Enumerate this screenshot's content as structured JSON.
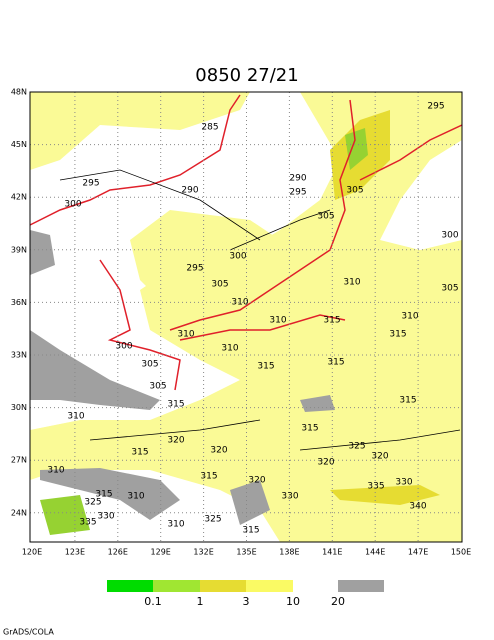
{
  "title": "0850 27/21",
  "lat_labels": [
    "48N",
    "45N",
    "42N",
    "39N",
    "36N",
    "33N",
    "30N",
    "27N",
    "24N"
  ],
  "lon_labels": [
    "120E",
    "123E",
    "126E",
    "129E",
    "132E",
    "135E",
    "138E",
    "141E",
    "144E",
    "147E",
    "150E"
  ],
  "contour_labels": [
    "285",
    "295",
    "300",
    "290",
    "290",
    "295",
    "305",
    "305",
    "300",
    "295",
    "305",
    "310",
    "310",
    "305",
    "310",
    "310",
    "315",
    "315",
    "310",
    "310",
    "300",
    "305",
    "315",
    "315",
    "305",
    "315",
    "310",
    "315",
    "315",
    "320",
    "315",
    "320",
    "325",
    "320",
    "320",
    "310",
    "315",
    "320",
    "315",
    "310",
    "330",
    "335",
    "330",
    "325",
    "330",
    "335",
    "340",
    "325",
    "315",
    "310",
    "300",
    "295"
  ],
  "legend": {
    "labels": [
      "0.1",
      "1",
      "3",
      "10",
      "20"
    ]
  },
  "footer": "GrADS/COLA"
}
